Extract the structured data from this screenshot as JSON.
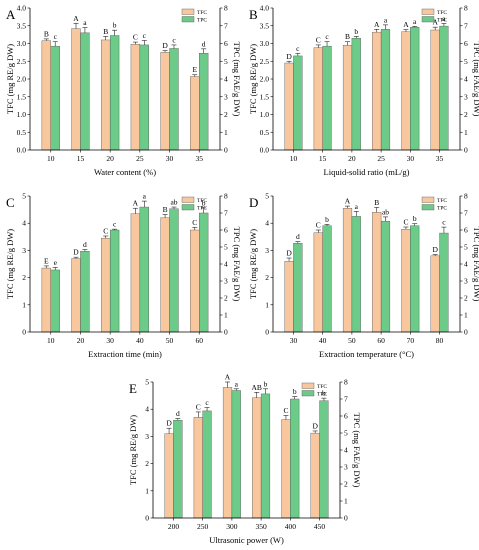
{
  "colors": {
    "tfc": "#f9c79e",
    "tpc": "#6ccb88",
    "axis": "#000000"
  },
  "chart_data": [
    {
      "type": "bar",
      "panel": "A",
      "xlabel": "Water content (%)",
      "ylabel_left": "TFC (mg RE/g DW)",
      "ylabel_right": "TPC (mg FAE/g DW)",
      "ylim_left": [
        0,
        4
      ],
      "yticks_left": [
        0,
        0.5,
        1.0,
        1.5,
        2.0,
        2.5,
        3.0,
        3.5,
        4.0
      ],
      "ylim_right": [
        0,
        8
      ],
      "yticks_right": [
        0,
        1,
        2,
        3,
        4,
        5,
        6,
        7,
        8
      ],
      "categories": [
        "10",
        "15",
        "20",
        "25",
        "30",
        "35"
      ],
      "series": [
        {
          "name": "TFC",
          "axis": "left",
          "values": [
            3.08,
            3.42,
            3.1,
            2.98,
            2.75,
            2.07
          ],
          "errors": [
            0.05,
            0.15,
            0.1,
            0.06,
            0.05,
            0.05
          ],
          "letters": [
            "B",
            "A",
            "B",
            "C",
            "D",
            "E"
          ]
        },
        {
          "name": "TPC",
          "axis": "right",
          "values": [
            5.85,
            6.6,
            6.45,
            5.92,
            5.72,
            5.45
          ],
          "errors": [
            0.25,
            0.3,
            0.3,
            0.25,
            0.2,
            0.25
          ],
          "letters": [
            "c",
            "a",
            "b",
            "c",
            "c",
            "d"
          ]
        }
      ],
      "legend_position": "top-right"
    },
    {
      "type": "bar",
      "panel": "B",
      "xlabel": "Liquid-solid ratio (mL/g)",
      "ylabel_left": "TFC (mg RE/g DW)",
      "ylabel_right": "TPC (mg FAE/g DW)",
      "ylim_left": [
        0,
        4
      ],
      "yticks_left": [
        0,
        0.5,
        1.0,
        1.5,
        2.0,
        2.5,
        3.0,
        3.5,
        4.0
      ],
      "ylim_right": [
        0,
        8
      ],
      "yticks_right": [
        0,
        1,
        2,
        3,
        4,
        5,
        6,
        7,
        8
      ],
      "categories": [
        "10",
        "15",
        "20",
        "25",
        "30",
        "35"
      ],
      "series": [
        {
          "name": "TFC",
          "axis": "left",
          "values": [
            2.45,
            2.88,
            2.95,
            3.32,
            3.33,
            3.38
          ],
          "errors": [
            0.05,
            0.08,
            0.1,
            0.08,
            0.06,
            0.08
          ],
          "letters": [
            "D",
            "C",
            "B",
            "A",
            "A",
            "A"
          ]
        },
        {
          "name": "TPC",
          "axis": "right",
          "values": [
            5.3,
            5.85,
            6.3,
            6.8,
            6.92,
            6.98
          ],
          "errors": [
            0.15,
            0.25,
            0.1,
            0.25,
            0.05,
            0.15
          ],
          "letters": [
            "c",
            "c",
            "b",
            "a",
            "a",
            "a"
          ]
        }
      ],
      "legend_position": "top-right"
    },
    {
      "type": "bar",
      "panel": "C",
      "xlabel": "Extraction time (min)",
      "ylabel_left": "TFC (mg RE/g DW)",
      "ylabel_right": "TPC (mg FAE/g DW)",
      "ylim_left": [
        0,
        5
      ],
      "yticks_left": [
        0,
        1,
        2,
        3,
        4,
        5
      ],
      "ylim_right": [
        0,
        8
      ],
      "yticks_right": [
        0,
        1,
        2,
        3,
        4,
        5,
        6,
        7,
        8
      ],
      "categories": [
        "10",
        "20",
        "30",
        "40",
        "50",
        "60"
      ],
      "series": [
        {
          "name": "TFC",
          "axis": "left",
          "values": [
            2.35,
            2.7,
            3.45,
            4.35,
            4.2,
            3.75
          ],
          "errors": [
            0.08,
            0.05,
            0.08,
            0.2,
            0.12,
            0.1
          ],
          "letters": [
            "E",
            "D",
            "C",
            "A",
            "B",
            "C"
          ]
        },
        {
          "name": "TPC",
          "axis": "right",
          "values": [
            3.65,
            4.75,
            6.0,
            7.35,
            7.25,
            7.0
          ],
          "errors": [
            0.15,
            0.1,
            0.05,
            0.35,
            0.1,
            0.3
          ],
          "letters": [
            "e",
            "d",
            "c",
            "a",
            "ab",
            "b"
          ]
        }
      ],
      "legend_position": "top-right"
    },
    {
      "type": "bar",
      "panel": "D",
      "xlabel": "Extraction temperature (°C)",
      "ylabel_left": "TFC (mg RE/g DW)",
      "ylabel_right": "TPC (mg FAE/g DW)",
      "ylim_left": [
        0,
        5
      ],
      "yticks_left": [
        0,
        1,
        2,
        3,
        4,
        5
      ],
      "ylim_right": [
        0,
        8
      ],
      "yticks_right": [
        0,
        1,
        2,
        3,
        4,
        5,
        6,
        7,
        8
      ],
      "categories": [
        "30",
        "40",
        "50",
        "60",
        "70",
        "80"
      ],
      "series": [
        {
          "name": "TFC",
          "axis": "left",
          "values": [
            2.6,
            3.65,
            4.55,
            4.4,
            3.78,
            2.8
          ],
          "errors": [
            0.12,
            0.1,
            0.08,
            0.18,
            0.08,
            0.05
          ],
          "letters": [
            "D",
            "C",
            "A",
            "B",
            "C",
            "D"
          ]
        },
        {
          "name": "TPC",
          "axis": "right",
          "values": [
            5.22,
            6.25,
            6.8,
            6.52,
            6.25,
            5.82
          ],
          "errors": [
            0.1,
            0.08,
            0.3,
            0.25,
            0.12,
            0.35
          ],
          "letters": [
            "d",
            "b",
            "a",
            "ab",
            "b",
            "c"
          ]
        }
      ],
      "legend_position": "top-right"
    },
    {
      "type": "bar",
      "panel": "E",
      "xlabel": "Ultrasonic power (W)",
      "ylabel_left": "TFC (mg RE/g DW)",
      "ylabel_right": "TPC (mg FAE/g DW)",
      "ylim_left": [
        0,
        5
      ],
      "yticks_left": [
        0,
        1,
        2,
        3,
        4,
        5
      ],
      "ylim_right": [
        0,
        8
      ],
      "yticks_right": [
        0,
        1,
        2,
        3,
        4,
        5,
        6,
        7,
        8
      ],
      "categories": [
        "200",
        "250",
        "300",
        "350",
        "400",
        "450"
      ],
      "series": [
        {
          "name": "TFC",
          "axis": "left",
          "values": [
            3.1,
            3.7,
            4.8,
            4.42,
            3.62,
            3.12
          ],
          "errors": [
            0.2,
            0.2,
            0.2,
            0.2,
            0.15,
            0.08
          ],
          "letters": [
            "D",
            "C",
            "A",
            "AB",
            "C",
            "D"
          ]
        },
        {
          "name": "TPC",
          "axis": "right",
          "values": [
            5.75,
            6.3,
            7.5,
            7.3,
            7.0,
            6.9
          ],
          "errors": [
            0.1,
            0.2,
            0.1,
            0.3,
            0.15,
            0.15
          ],
          "letters": [
            "d",
            "c",
            "a",
            "b",
            "b",
            "b"
          ]
        }
      ],
      "legend_position": "top-right"
    }
  ]
}
